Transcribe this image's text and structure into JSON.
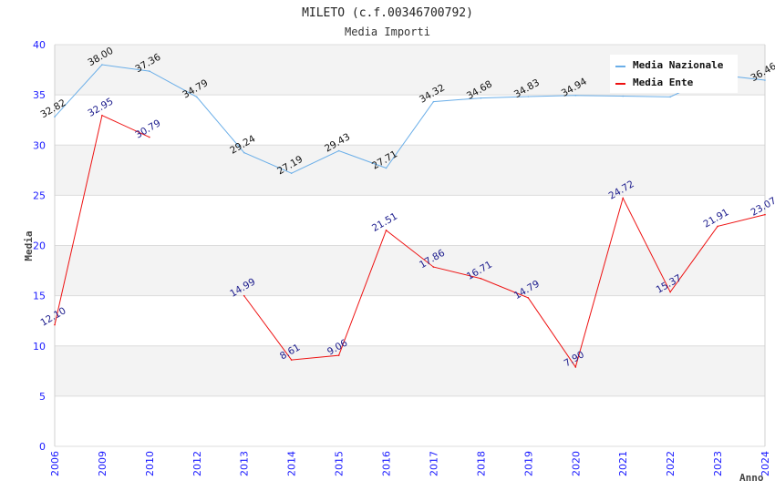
{
  "chart_data": {
    "type": "line",
    "title": "MILETO (c.f.00346700792)",
    "subtitle": "Media Importi",
    "xlabel": "Anno",
    "ylabel": "Media",
    "ylim": [
      0,
      40
    ],
    "yticks": [
      "0",
      "5",
      "10",
      "15",
      "20",
      "25",
      "30",
      "35",
      "40"
    ],
    "categories": [
      "2006",
      "2009",
      "2010",
      "2012",
      "2013",
      "2014",
      "2015",
      "2016",
      "2017",
      "2018",
      "2019",
      "2020",
      "2021",
      "2022",
      "2023",
      "2024"
    ],
    "grid": true,
    "legend_position": "top-right",
    "series": [
      {
        "name": "Media Nazionale",
        "color": "#6aaee8",
        "label_color": "#111111",
        "values": [
          32.82,
          38.0,
          37.36,
          34.79,
          29.24,
          27.19,
          29.43,
          27.71,
          34.32,
          34.68,
          34.83,
          34.94,
          34.87,
          34.8,
          37.0,
          36.46
        ],
        "labels": [
          "32.82",
          "38.00",
          "37.36",
          "34.79",
          "29.24",
          "27.19",
          "29.43",
          "27.71",
          "34.32",
          "34.68",
          "34.83",
          "34.94",
          null,
          null,
          null,
          "36.46"
        ]
      },
      {
        "name": "Media Ente",
        "color": "#ee1111",
        "label_color": "#1a1a8c",
        "values": [
          12.1,
          32.95,
          30.79,
          null,
          14.99,
          8.61,
          9.06,
          21.51,
          17.86,
          16.71,
          14.79,
          7.9,
          24.72,
          15.37,
          21.91,
          23.07
        ],
        "labels": [
          "12.10",
          "32.95",
          "30.79",
          null,
          "14.99",
          "8.61",
          "9.06",
          "21.51",
          "17.86",
          "16.71",
          "14.79",
          "7.90",
          "24.72",
          "15.37",
          "21.91",
          "23.07"
        ]
      }
    ]
  }
}
